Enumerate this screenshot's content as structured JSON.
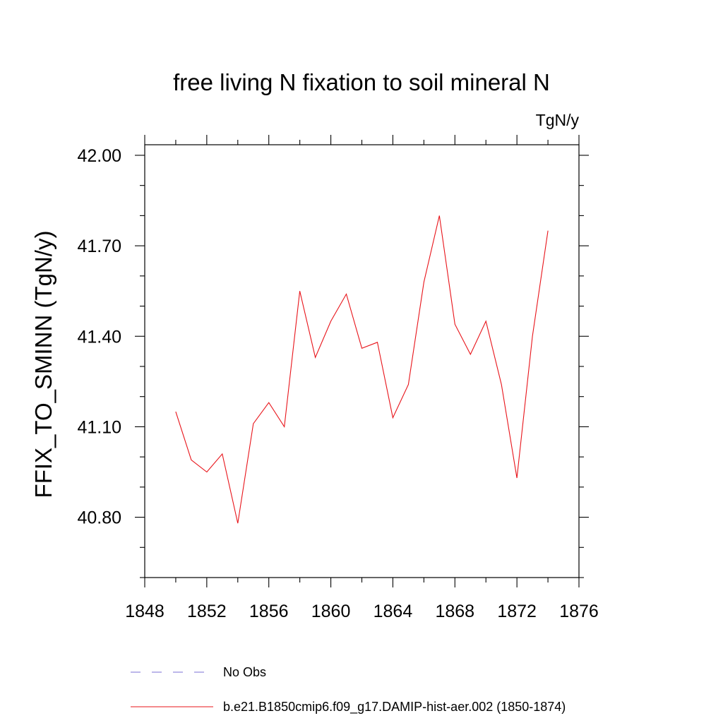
{
  "chart_data": {
    "type": "line",
    "title": "free living N fixation to soil mineral N",
    "units": "TgN/y",
    "ylabel": "FFIX_TO_SMINN  (TgN/y)",
    "xlabel": "",
    "xlim": [
      1848,
      1876
    ],
    "ylim": [
      40.6,
      42.035
    ],
    "x_ticks": [
      1848,
      1852,
      1856,
      1860,
      1864,
      1868,
      1872,
      1876
    ],
    "x_tick_labels": [
      "1848",
      "1852",
      "1856",
      "1860",
      "1864",
      "1868",
      "1872",
      "1876"
    ],
    "y_ticks": [
      40.8,
      41.1,
      41.4,
      41.7,
      42.0
    ],
    "y_tick_labels": [
      "40.80",
      "41.10",
      "41.40",
      "41.70",
      "42.00"
    ],
    "grid": false,
    "legend_position": "bottom",
    "series": [
      {
        "name": "No Obs",
        "color": "#7b6fd6",
        "dash": "dashed",
        "x": [],
        "y": []
      },
      {
        "name": "b.e21.B1850cmip6.f09_g17.DAMIP-hist-aer.002 (1850-1874)",
        "color": "#e8141a",
        "dash": "solid",
        "x": [
          1850,
          1851,
          1852,
          1853,
          1854,
          1855,
          1856,
          1857,
          1858,
          1859,
          1860,
          1861,
          1862,
          1863,
          1864,
          1865,
          1866,
          1867,
          1868,
          1869,
          1870,
          1871,
          1872,
          1873,
          1874
        ],
        "y": [
          41.15,
          40.99,
          40.95,
          41.01,
          40.78,
          41.11,
          41.18,
          41.1,
          41.55,
          41.33,
          41.45,
          41.54,
          41.36,
          41.38,
          41.13,
          41.24,
          41.58,
          41.8,
          41.44,
          41.34,
          41.45,
          41.24,
          40.93,
          41.4,
          41.75
        ]
      }
    ]
  }
}
